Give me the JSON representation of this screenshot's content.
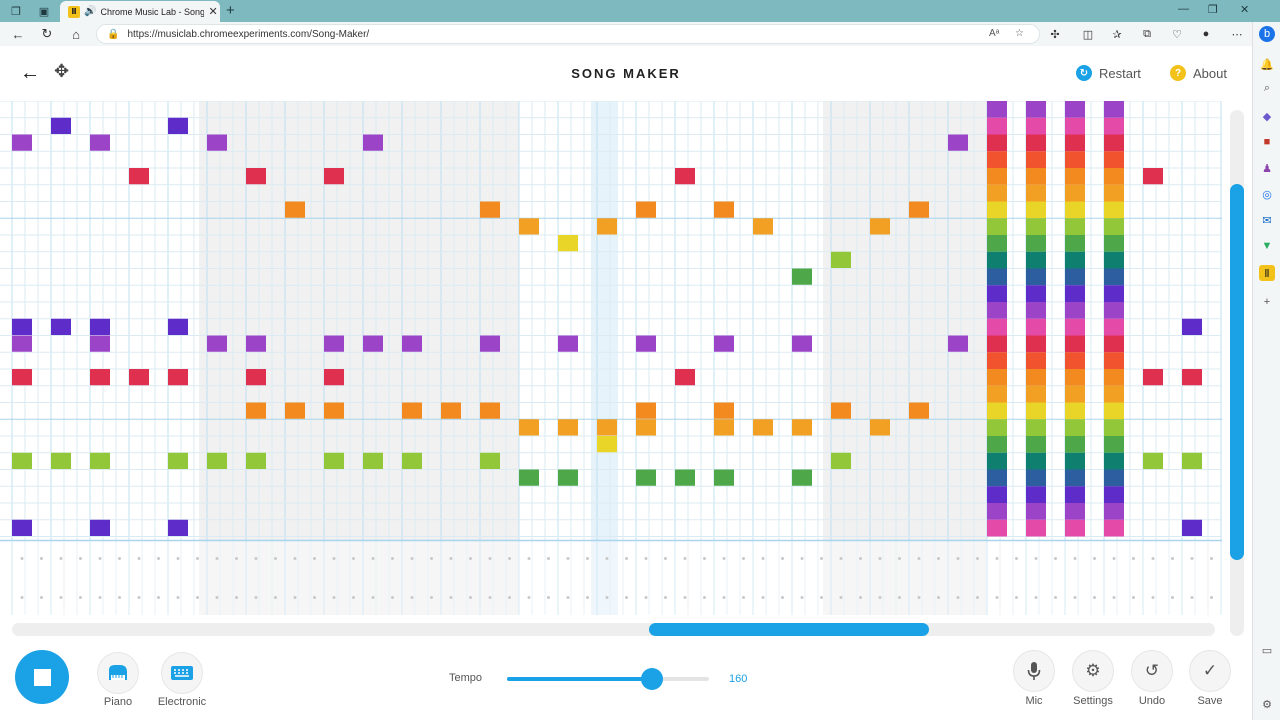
{
  "browser": {
    "tab_title": "Chrome Music Lab - Song M",
    "url": "https://musiclab.chromeexperiments.com/Song-Maker/",
    "new_tab_symbol": "+"
  },
  "header": {
    "title": "SONG MAKER",
    "restart_label": "Restart",
    "about_label": "About"
  },
  "controls": {
    "instruments": [
      {
        "label": "Piano",
        "icon": "piano-icon"
      },
      {
        "label": "Electronic",
        "icon": "keyboard-icon"
      }
    ],
    "tempo_label": "Tempo",
    "tempo_value": "160",
    "tempo_level": 0.72,
    "buttons": [
      {
        "label": "Mic",
        "icon": "mic-icon"
      },
      {
        "label": "Settings",
        "icon": "gear-icon"
      },
      {
        "label": "Undo",
        "icon": "undo-icon"
      },
      {
        "label": "Save",
        "icon": "check-icon"
      }
    ]
  },
  "colors": {
    "accent": "#1aa1e6",
    "notes": [
      "#5e2cc8",
      "#2d5fa0",
      "#0f8070",
      "#4ea84a",
      "#92c73a",
      "#e8d528",
      "#f2a024",
      "#f28a20",
      "#f2532f",
      "#e03050",
      "#e44aa8",
      "#9c44c8"
    ]
  },
  "song": {
    "columns": 31,
    "rows": 26,
    "notes": [
      [
        1,
        1
      ],
      [
        4,
        1
      ],
      [
        0,
        2
      ],
      [
        2,
        2
      ],
      [
        5,
        2
      ],
      [
        9,
        2
      ],
      [
        24,
        2
      ],
      [
        3,
        4
      ],
      [
        6,
        4
      ],
      [
        8,
        4
      ],
      [
        17,
        4
      ],
      [
        29,
        4
      ],
      [
        7,
        6
      ],
      [
        12,
        6
      ],
      [
        16,
        6
      ],
      [
        18,
        6
      ],
      [
        23,
        6
      ],
      [
        13,
        7
      ],
      [
        15,
        7
      ],
      [
        19,
        7
      ],
      [
        22,
        7
      ],
      [
        14,
        8
      ],
      [
        21,
        9
      ],
      [
        20,
        10
      ],
      [
        0,
        13
      ],
      [
        1,
        13
      ],
      [
        2,
        13
      ],
      [
        4,
        13
      ],
      [
        30,
        13
      ],
      [
        0,
        14
      ],
      [
        2,
        14
      ],
      [
        5,
        14
      ],
      [
        6,
        14
      ],
      [
        8,
        14
      ],
      [
        9,
        14
      ],
      [
        10,
        14
      ],
      [
        12,
        14
      ],
      [
        14,
        14
      ],
      [
        16,
        14
      ],
      [
        18,
        14
      ],
      [
        20,
        14
      ],
      [
        24,
        14
      ],
      [
        0,
        16
      ],
      [
        2,
        16
      ],
      [
        3,
        16
      ],
      [
        4,
        16
      ],
      [
        6,
        16
      ],
      [
        8,
        16
      ],
      [
        17,
        16
      ],
      [
        29,
        16
      ],
      [
        30,
        16
      ],
      [
        6,
        18
      ],
      [
        7,
        18
      ],
      [
        8,
        18
      ],
      [
        10,
        18
      ],
      [
        11,
        18
      ],
      [
        12,
        18
      ],
      [
        16,
        18
      ],
      [
        18,
        18
      ],
      [
        21,
        18
      ],
      [
        23,
        18
      ],
      [
        13,
        19
      ],
      [
        14,
        19
      ],
      [
        15,
        19
      ],
      [
        16,
        19
      ],
      [
        18,
        19
      ],
      [
        19,
        19
      ],
      [
        20,
        19
      ],
      [
        22,
        19
      ],
      [
        15,
        20
      ],
      [
        0,
        21
      ],
      [
        1,
        21
      ],
      [
        2,
        21
      ],
      [
        4,
        21
      ],
      [
        5,
        21
      ],
      [
        6,
        21
      ],
      [
        8,
        21
      ],
      [
        9,
        21
      ],
      [
        10,
        21
      ],
      [
        12,
        21
      ],
      [
        21,
        21
      ],
      [
        29,
        21
      ],
      [
        30,
        21
      ],
      [
        13,
        22
      ],
      [
        14,
        22
      ],
      [
        16,
        22
      ],
      [
        17,
        22
      ],
      [
        18,
        22
      ],
      [
        20,
        22
      ],
      [
        0,
        25
      ],
      [
        2,
        25
      ],
      [
        4,
        25
      ],
      [
        30,
        25
      ]
    ],
    "chord_columns": [
      25,
      26,
      27,
      28
    ],
    "highlight_column": 15
  }
}
